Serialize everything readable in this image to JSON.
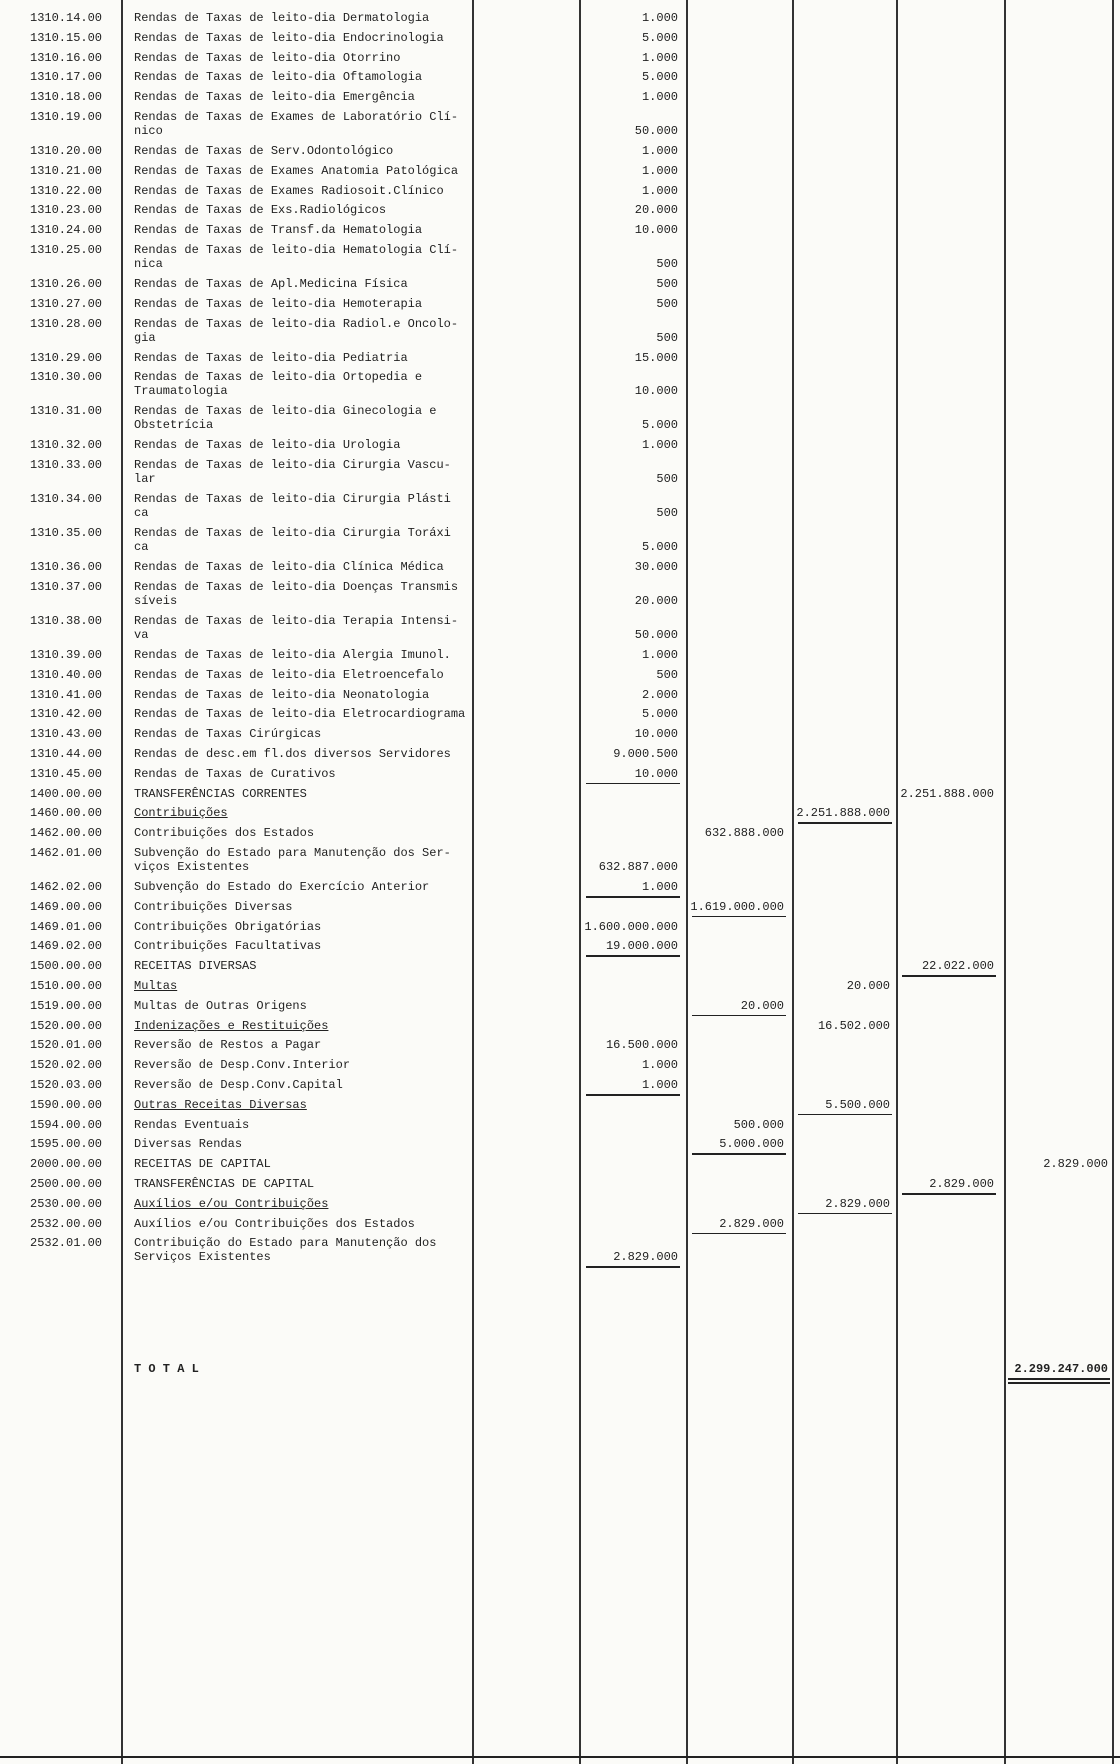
{
  "rows": [
    {
      "code": "1310.14.00",
      "description": "Rendas de Taxas de leito-dia Dermatologia",
      "column": 0,
      "amount": "1.000"
    },
    {
      "code": "1310.15.00",
      "description": "Rendas de Taxas de leito-dia Endocrinologia",
      "column": 0,
      "amount": "5.000"
    },
    {
      "code": "1310.16.00",
      "description": "Rendas de Taxas de leito-dia Otorrino",
      "column": 0,
      "amount": "1.000"
    },
    {
      "code": "1310.17.00",
      "description": "Rendas de Taxas de leito-dia Oftamologia",
      "column": 0,
      "amount": "5.000"
    },
    {
      "code": "1310.18.00",
      "description": "Rendas de Taxas de leito-dia Emergência",
      "column": 0,
      "amount": "1.000"
    },
    {
      "code": "1310.19.00",
      "description": "Rendas de Taxas de Exames de Laboratório Clí-\nnico",
      "column": 0,
      "amount": "50.000"
    },
    {
      "code": "1310.20.00",
      "description": "Rendas de Taxas de Serv.Odontológico",
      "column": 0,
      "amount": "1.000"
    },
    {
      "code": "1310.21.00",
      "description": "Rendas de Taxas de Exames Anatomia Patológica",
      "column": 0,
      "amount": "1.000"
    },
    {
      "code": "1310.22.00",
      "description": "Rendas de Taxas de Exames Radiosoit.Clínico",
      "column": 0,
      "amount": "1.000"
    },
    {
      "code": "1310.23.00",
      "description": "Rendas de Taxas de Exs.Radiológicos",
      "column": 0,
      "amount": "20.000"
    },
    {
      "code": "1310.24.00",
      "description": "Rendas de Taxas de Transf.da Hematologia",
      "column": 0,
      "amount": "10.000"
    },
    {
      "code": "1310.25.00",
      "description": "Rendas de Taxas de leito-dia Hematologia Clí-\nnica",
      "column": 0,
      "amount": "500"
    },
    {
      "code": "1310.26.00",
      "description": "Rendas de Taxas de Apl.Medicina Física",
      "column": 0,
      "amount": "500"
    },
    {
      "code": "1310.27.00",
      "description": "Rendas de Taxas de leito-dia Hemoterapia",
      "column": 0,
      "amount": "500"
    },
    {
      "code": "1310.28.00",
      "description": "Rendas de Taxas de leito-dia Radiol.e Oncolo-\ngia",
      "column": 0,
      "amount": "500"
    },
    {
      "code": "1310.29.00",
      "description": "Rendas de Taxas de leito-dia Pediatria",
      "column": 0,
      "amount": "15.000"
    },
    {
      "code": "1310.30.00",
      "description": "Rendas de Taxas de leito-dia Ortopedia e\nTraumatologia",
      "column": 0,
      "amount": "10.000"
    },
    {
      "code": "1310.31.00",
      "description": "Rendas de Taxas de leito-dia Ginecologia e\nObstetrícia",
      "column": 0,
      "amount": "5.000"
    },
    {
      "code": "1310.32.00",
      "description": "Rendas de Taxas de leito-dia Urologia",
      "column": 0,
      "amount": "1.000"
    },
    {
      "code": "1310.33.00",
      "description": "Rendas de Taxas de leito-dia Cirurgia Vascu-\nlar",
      "column": 0,
      "amount": "500"
    },
    {
      "code": "1310.34.00",
      "description": "Rendas de Taxas de leito-dia Cirurgia Plásti\nca",
      "column": 0,
      "amount": "500"
    },
    {
      "code": "1310.35.00",
      "description": "Rendas de Taxas de leito-dia Cirurgia Toráxi\nca",
      "column": 0,
      "amount": "5.000"
    },
    {
      "code": "1310.36.00",
      "description": "Rendas de Taxas de leito-dia Clínica Médica",
      "column": 0,
      "amount": "30.000"
    },
    {
      "code": "1310.37.00",
      "description": "Rendas de Taxas de leito-dia Doenças Transmis\nsíveis",
      "column": 0,
      "amount": "20.000"
    },
    {
      "code": "1310.38.00",
      "description": "Rendas de Taxas de leito-dia Terapia Intensi-\nva",
      "column": 0,
      "amount": "50.000"
    },
    {
      "code": "1310.39.00",
      "description": "Rendas de Taxas de leito-dia Alergia Imunol.",
      "column": 0,
      "amount": "1.000"
    },
    {
      "code": "1310.40.00",
      "description": "Rendas de Taxas de leito-dia Eletroencefalo",
      "column": 0,
      "amount": "500"
    },
    {
      "code": "1310.41.00",
      "description": "Rendas de Taxas de leito-dia Neonatologia",
      "column": 0,
      "amount": "2.000"
    },
    {
      "code": "1310.42.00",
      "description": "Rendas de Taxas de leito-dia Eletrocardiograma",
      "column": 0,
      "amount": "5.000"
    },
    {
      "code": "1310.43.00",
      "description": "Rendas de Taxas Cirúrgicas",
      "column": 0,
      "amount": "10.000"
    },
    {
      "code": "1310.44.00",
      "description": "Rendas de desc.em fl.dos diversos Servidores",
      "column": 0,
      "amount": "9.000.500"
    },
    {
      "code": "1310.45.00",
      "description": "Rendas de Taxas de Curativos",
      "column": 0,
      "amount": "10.000",
      "underline": true
    },
    {
      "code": "1400.00.00",
      "description": "TRANSFERÊNCIAS CORRENTES",
      "column": 3,
      "amount": "2.251.888.000"
    },
    {
      "code": "1460.00.00",
      "description": "Contribuições",
      "column": 2,
      "amount": "2.251.888.000",
      "underline": true,
      "description_underline": true
    },
    {
      "code": "1462.00.00",
      "description": "Contribuições dos Estados",
      "column": 1,
      "amount": "632.888.000"
    },
    {
      "code": "1462.01.00",
      "description": "Subvenção do Estado para Manutenção dos Ser-\nviços Existentes",
      "column": 0,
      "amount": "632.887.000"
    },
    {
      "code": "1462.02.00",
      "description": "Subvenção do Estado do Exercício Anterior",
      "column": 0,
      "amount": "1.000",
      "underline": true
    },
    {
      "code": "1469.00.00",
      "description": "Contribuições Diversas",
      "column": 1,
      "amount": "1.619.000.000",
      "underline": true
    },
    {
      "code": "1469.01.00",
      "description": "Contribuições Obrigatórias",
      "column": 0,
      "amount": "1.600.000.000"
    },
    {
      "code": "1469.02.00",
      "description": "Contribuições Facultativas",
      "column": 0,
      "amount": "19.000.000",
      "underline": true
    },
    {
      "code": "1500.00.00",
      "description": "RECEITAS DIVERSAS",
      "column": 3,
      "amount": "22.022.000",
      "underline": true
    },
    {
      "code": "1510.00.00",
      "description": "Multas",
      "column": 2,
      "amount": "20.000",
      "description_underline": true
    },
    {
      "code": "1519.00.00",
      "description": "Multas de Outras Origens",
      "column": 1,
      "amount": "20.000",
      "underline": true
    },
    {
      "code": "1520.00.00",
      "description": "Indenizações e Restituições",
      "column": 2,
      "amount": "16.502.000",
      "description_underline": true
    },
    {
      "code": "1520.01.00",
      "description": "Reversão de Restos a Pagar",
      "column": 0,
      "amount": "16.500.000"
    },
    {
      "code": "1520.02.00",
      "description": "Reversão de Desp.Conv.Interior",
      "column": 0,
      "amount": "1.000"
    },
    {
      "code": "1520.03.00",
      "description": "Reversão de Desp.Conv.Capital",
      "column": 0,
      "amount": "1.000",
      "underline": true
    },
    {
      "code": "1590.00.00",
      "description": "Outras Receitas Diversas",
      "column": 2,
      "amount": "5.500.000",
      "underline": true,
      "description_underline": true
    },
    {
      "code": "1594.00.00",
      "description": "Rendas Eventuais",
      "column": 1,
      "amount": "500.000"
    },
    {
      "code": "1595.00.00",
      "description": "Diversas Rendas",
      "column": 1,
      "amount": "5.000.000",
      "underline": true
    },
    {
      "code": "2000.00.00",
      "description": "RECEITAS DE CAPITAL",
      "column": 4,
      "amount": "2.829.000"
    },
    {
      "code": "2500.00.00",
      "description": "TRANSFERÊNCIAS DE CAPITAL",
      "column": 3,
      "amount": "2.829.000",
      "underline": true
    },
    {
      "code": "2530.00.00",
      "description": "Auxílios e/ou Contribuições",
      "column": 2,
      "amount": "2.829.000",
      "underline": true,
      "description_underline": true
    },
    {
      "code": "2532.00.00",
      "description": "Auxílios e/ou Contribuições dos Estados",
      "column": 1,
      "amount": "2.829.000",
      "underline": true
    },
    {
      "code": "2532.01.00",
      "description": "Contribuição do Estado para Manutenção dos\nServiços Existentes",
      "column": 0,
      "amount": "2.829.000",
      "underline": true
    }
  ],
  "total": {
    "label": "T O T A L",
    "column": 4,
    "amount": "2.299.247.000",
    "double_underline": true
  }
}
